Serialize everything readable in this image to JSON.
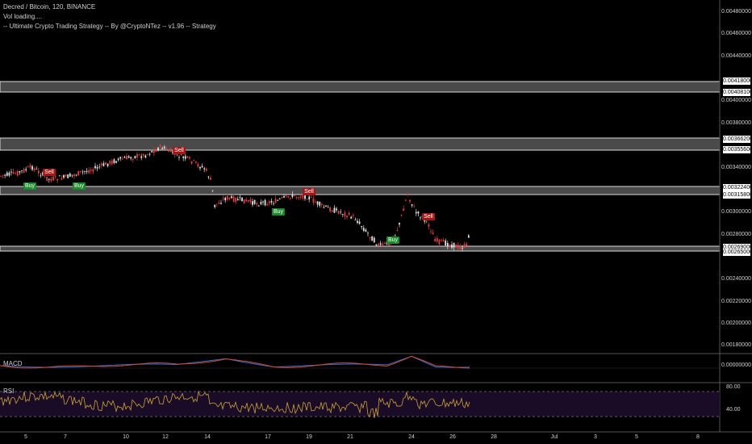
{
  "header": {
    "title": "Decred / Bitcoin, 120, BINANCE",
    "vol_status": "Vol loading....",
    "strategy": "-- Ultimate Crypto Trading Strategy -- By @CryptoNTez -- v1.96 -- Strategy"
  },
  "panes": {
    "macd_label": "MACD",
    "rsi_label": "RSI"
  },
  "price_axis": {
    "ticks": [
      "0.00480000",
      "0.00460000",
      "0.00440000",
      "0.00400000",
      "0.00380000",
      "0.00340000",
      "0.00300000",
      "0.00280000",
      "0.00240000",
      "0.00220000",
      "0.00200000",
      "0.00180000"
    ],
    "macd_tick": "0.00000000",
    "rsi_ticks": [
      "80.00",
      "40.00"
    ]
  },
  "zone_labels": [
    "0.00418000",
    "0.00408100",
    "0.00366200",
    "0.00355600",
    "0.00322400",
    "0.00315800",
    "0.00269000",
    "0.00265000"
  ],
  "time_axis": [
    "5",
    "7",
    "10",
    "12",
    "14",
    "17",
    "19",
    "21",
    "24",
    "26",
    "28",
    "Jul",
    "3",
    "5",
    "8"
  ],
  "signals": [
    {
      "text": "Sell",
      "type": "sell"
    },
    {
      "text": "Buy",
      "type": "buy"
    },
    {
      "text": "Buy",
      "type": "buy"
    },
    {
      "text": "Sell",
      "type": "sell"
    },
    {
      "text": "Sell",
      "type": "sell"
    },
    {
      "text": "Buy",
      "type": "buy"
    },
    {
      "text": "Buy",
      "type": "buy"
    },
    {
      "text": "Sell",
      "type": "sell"
    }
  ],
  "colors": {
    "background": "#000000",
    "up": "#e0e0e0",
    "down": "#e04040",
    "zone": "#4a4a4a",
    "macd_line": "#2a6fd6",
    "signal_line": "#d64a2a",
    "rsi_line": "#c9a23a",
    "rsi_band": "#1a0c26"
  }
}
